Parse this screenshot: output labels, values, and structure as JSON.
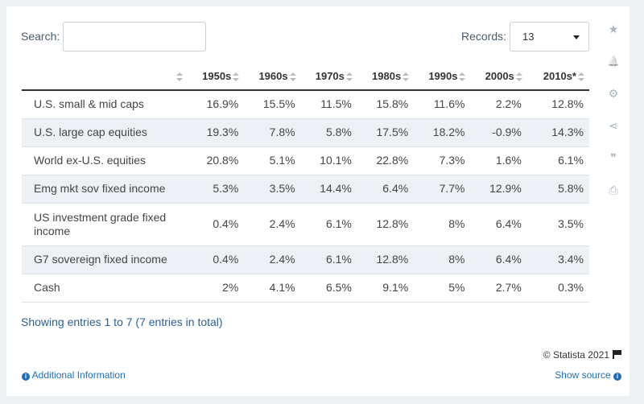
{
  "search": {
    "label": "Search:",
    "value": "",
    "placeholder": ""
  },
  "records": {
    "label": "Records:",
    "value": "13"
  },
  "table": {
    "headers": [
      "",
      "1950s",
      "1960s",
      "1970s",
      "1980s",
      "1990s",
      "2000s",
      "2010s*"
    ],
    "rows": [
      [
        "U.S. small & mid caps",
        "16.9%",
        "15.5%",
        "11.5%",
        "15.8%",
        "11.6%",
        "2.2%",
        "12.8%"
      ],
      [
        "U.S. large cap equities",
        "19.3%",
        "7.8%",
        "5.8%",
        "17.5%",
        "18.2%",
        "-0.9%",
        "14.3%"
      ],
      [
        "World ex-U.S. equities",
        "20.8%",
        "5.1%",
        "10.1%",
        "22.8%",
        "7.3%",
        "1.6%",
        "6.1%"
      ],
      [
        "Emg mkt sov fixed income",
        "5.3%",
        "3.5%",
        "14.4%",
        "6.4%",
        "7.7%",
        "12.9%",
        "5.8%"
      ],
      [
        "US investment grade fixed income",
        "0.4%",
        "2.4%",
        "6.1%",
        "12.8%",
        "8%",
        "6.4%",
        "3.5%"
      ],
      [
        "G7 sovereign fixed income",
        "0.4%",
        "2.4%",
        "6.1%",
        "12.8%",
        "8%",
        "6.4%",
        "3.4%"
      ],
      [
        "Cash",
        "2%",
        "4.1%",
        "6.5%",
        "9.1%",
        "5%",
        "2.7%",
        "0.3%"
      ]
    ]
  },
  "footer": {
    "showing": "Showing entries 1 to 7 (7 entries in total)",
    "copyright": "© Statista 2021",
    "additional_info": "Additional Information",
    "show_source": "Show source"
  },
  "icons": {
    "info": "i",
    "star": "★",
    "bell": "🔔",
    "gear": "⚙",
    "share": "⋖",
    "quote": "❞",
    "print": "⎙"
  },
  "colors": {
    "link": "#1d6fb8",
    "row_alt": "#edf1f5",
    "background": "#eef1f4"
  }
}
